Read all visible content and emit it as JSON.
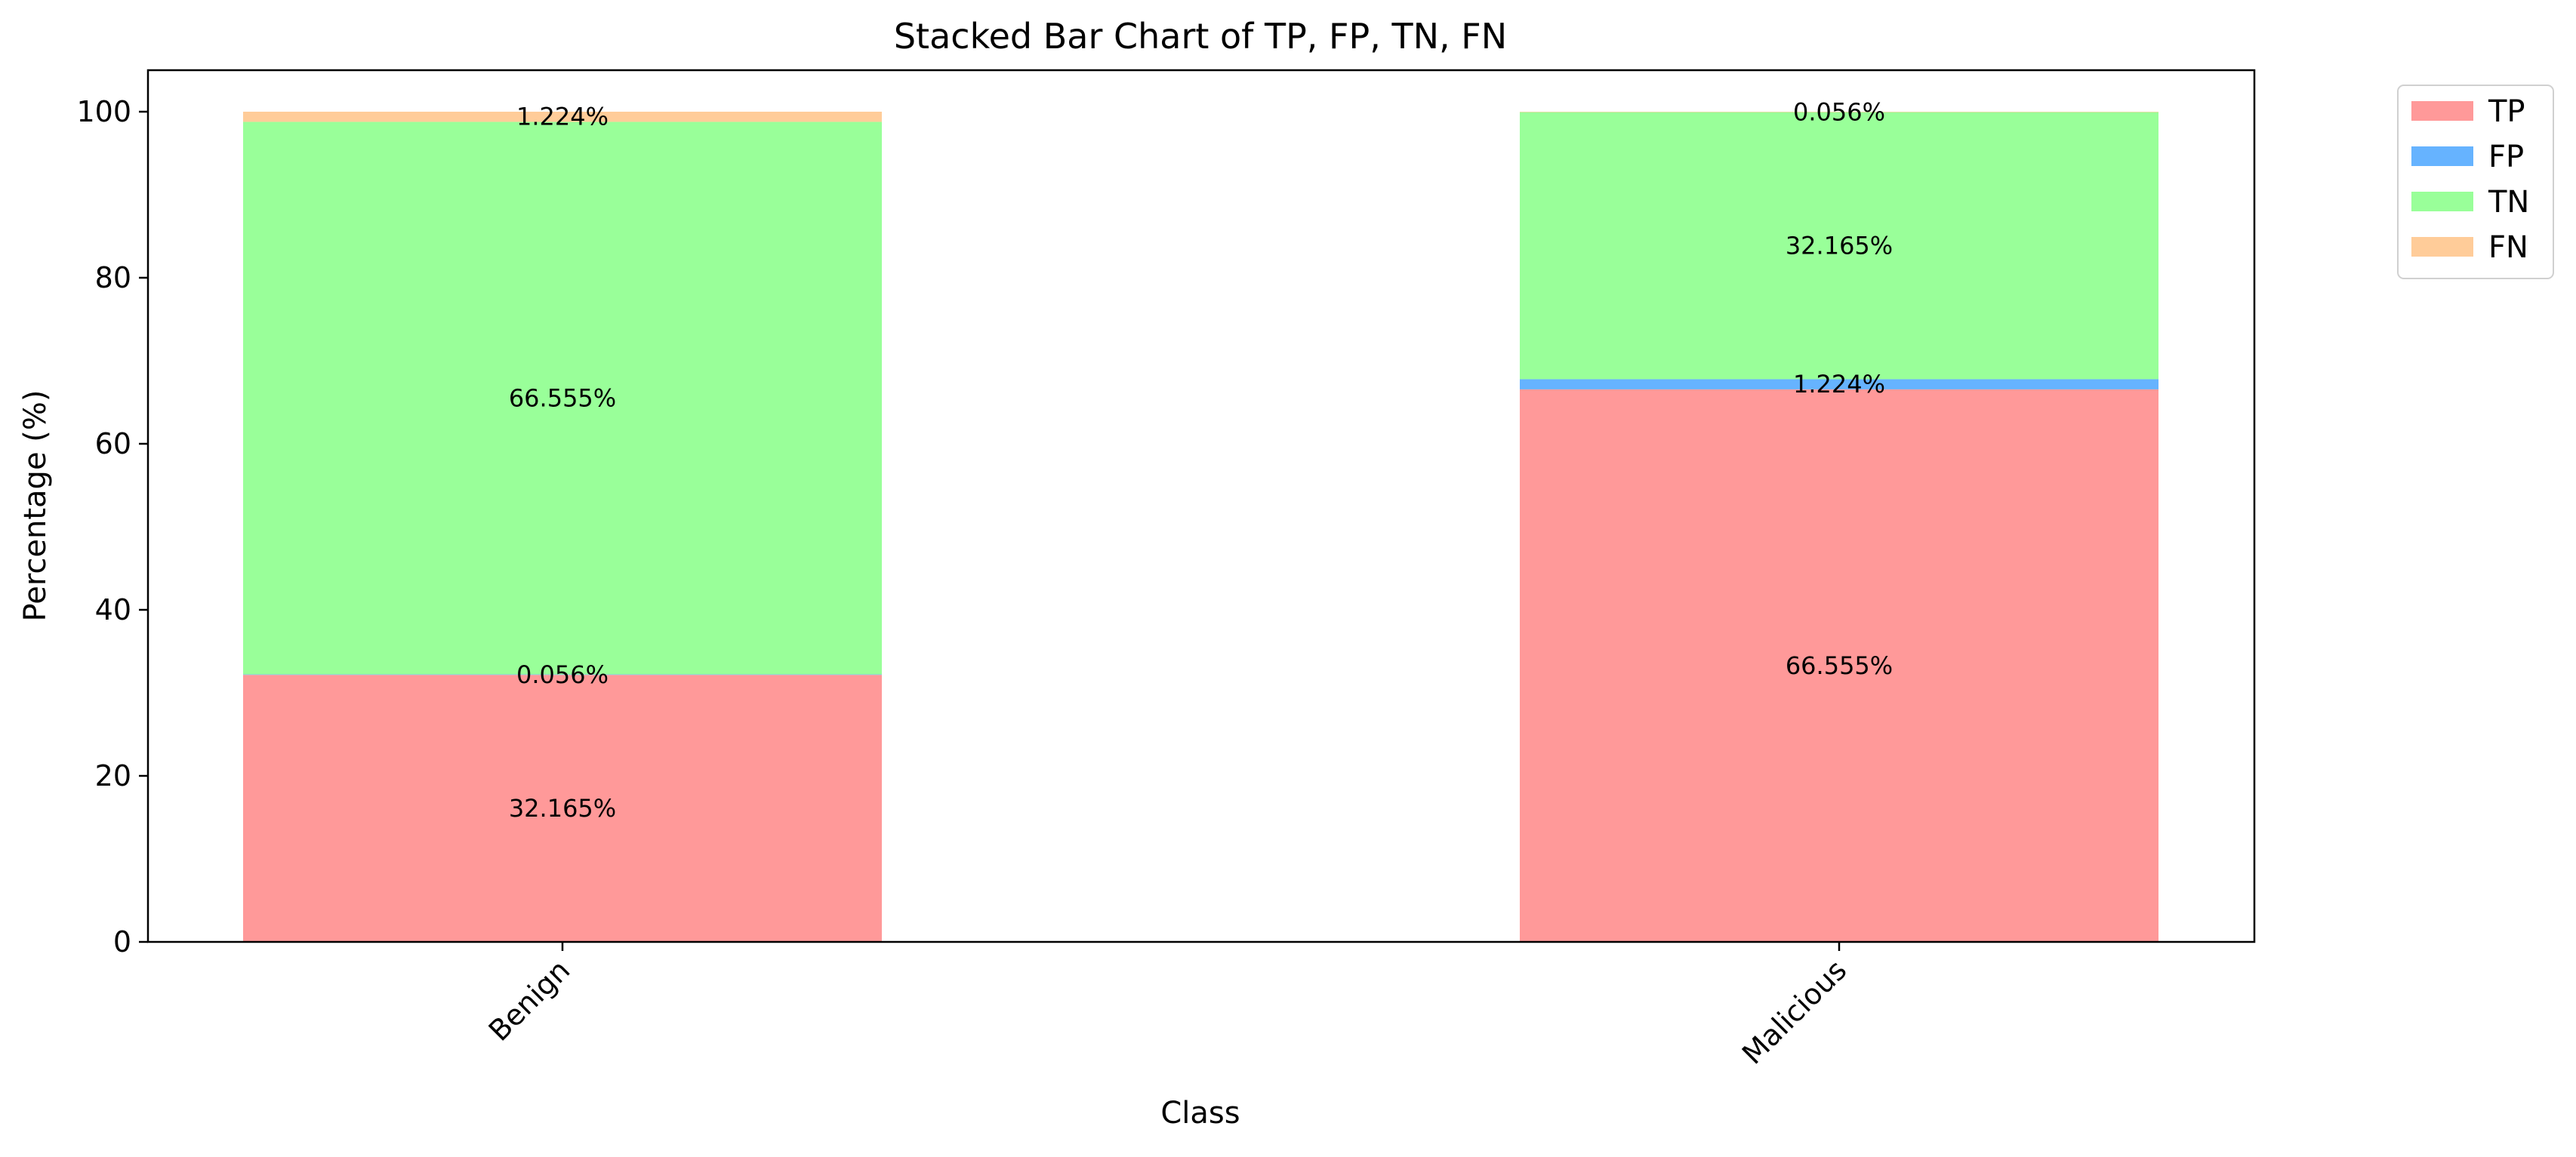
{
  "chart_data": {
    "type": "bar",
    "stacked": true,
    "title": "Stacked Bar Chart of TP, FP, TN, FN",
    "xlabel": "Class",
    "ylabel": "Percentage (%)",
    "categories": [
      "Benign",
      "Malicious"
    ],
    "ylim": [
      0,
      105
    ],
    "yticks": [
      0,
      20,
      40,
      60,
      80,
      100
    ],
    "grid": false,
    "legend_position": "outside top-right",
    "series": [
      {
        "name": "TP",
        "color": "#ff9999",
        "values": [
          32.165,
          66.555
        ],
        "labels": [
          "32.165%",
          "66.555%"
        ]
      },
      {
        "name": "FP",
        "color": "#66b3ff",
        "values": [
          0.056,
          1.224
        ],
        "labels": [
          "0.056%",
          "1.224%"
        ]
      },
      {
        "name": "TN",
        "color": "#99ff99",
        "values": [
          66.555,
          32.165
        ],
        "labels": [
          "66.555%",
          "32.165%"
        ]
      },
      {
        "name": "FN",
        "color": "#ffcc99",
        "values": [
          1.224,
          0.056
        ],
        "labels": [
          "1.224%",
          "0.056%"
        ]
      }
    ]
  }
}
